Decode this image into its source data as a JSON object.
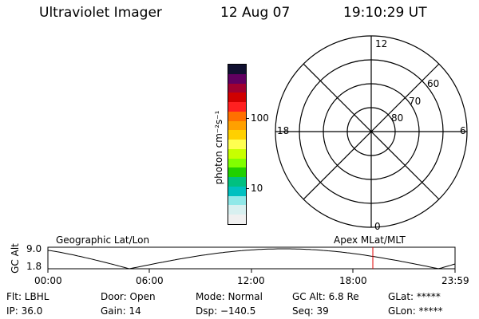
{
  "header": {
    "title": "Ultraviolet Imager",
    "date": "12 Aug 07",
    "time": "19:10:29 UT"
  },
  "colorbar": {
    "unit_label": "photon cm⁻²s⁻¹",
    "tick_100": "100",
    "tick_10": "10",
    "colors": [
      "#101030",
      "#600060",
      "#a00030",
      "#d00000",
      "#ff2020",
      "#ff7000",
      "#ffa000",
      "#ffd000",
      "#ffff50",
      "#c8ff00",
      "#80ff00",
      "#20d000",
      "#00c080",
      "#00c0c0",
      "#90e8e8",
      "#d8f0f0",
      "#f0f0f0"
    ]
  },
  "polar_plot": {
    "mlt_top": "12",
    "mlt_left": "18",
    "mlt_right": "6",
    "mlt_bottom": "0",
    "lat_60": "60",
    "lat_70": "70",
    "lat_80": "80"
  },
  "timeline": {
    "y_label": "GC Alt",
    "y_max": "9.0",
    "y_min": "1.8",
    "left_label": "Geographic Lat/Lon",
    "right_label": "Apex MLat/MLT",
    "ticks": [
      "00:00",
      "06:00",
      "12:00",
      "18:00",
      "23:59"
    ],
    "marker_color": "#e00000"
  },
  "footer": {
    "row1": [
      "Flt: LBHL",
      "Door: Open",
      "Mode: Normal",
      "GC Alt: 6.8 Re",
      "GLat: *****"
    ],
    "row2": [
      "IP: 36.0",
      "Gain: 14",
      "Dsp: −140.5",
      "Seq: 39",
      "GLon: *****"
    ]
  }
}
